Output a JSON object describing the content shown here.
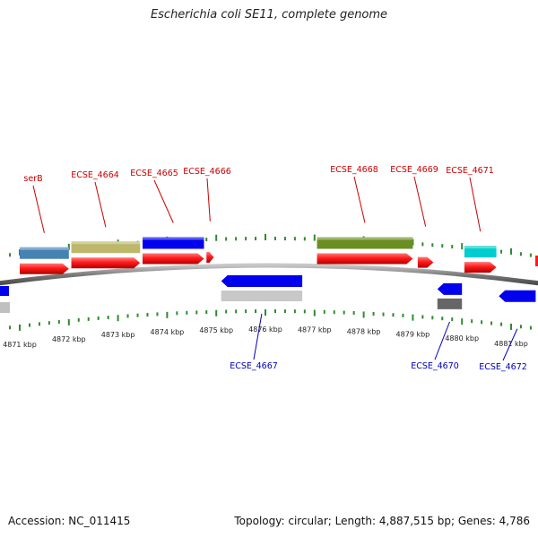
{
  "title": "Escherichia coli SE11, complete genome",
  "footer": {
    "accession": "Accession: NC_011415",
    "summary": "Topology: circular; Length: 4,887,515 bp; Genes: 4,786"
  },
  "colors": {
    "backbone": "#8a8a8a",
    "tick": "#2e8b2e",
    "forward_label": "#cc0000",
    "reverse_label": "#0000bb",
    "cds": "#ff1a1a"
  },
  "tick_labels": [
    "4871 kbp",
    "4872 kbp",
    "4873 kbp",
    "4874 kbp",
    "4875 kbp",
    "4876 kbp",
    "4877 kbp",
    "4878 kbp",
    "4879 kbp",
    "4880 kbp",
    "4881 kbp"
  ],
  "forward_labels": [
    "serB",
    "ECSE_4664",
    "ECSE_4665",
    "ECSE_4666",
    "ECSE_4668",
    "ECSE_4669",
    "ECSE_4671"
  ],
  "reverse_labels": [
    "ECSE_4667",
    "ECSE_4670",
    "ECSE_4672"
  ],
  "chart_data": {
    "type": "genome_track",
    "region_kbp": [
      4870.8,
      4881.8
    ],
    "forward_genes": [
      {
        "label": "serB",
        "start": 4871.0,
        "end": 4872.0,
        "color": "#4682b4"
      },
      {
        "label": "ECSE_4664",
        "start": 4872.05,
        "end": 4873.45,
        "color": "#bdb76b"
      },
      {
        "label": "ECSE_4665",
        "start": 4873.5,
        "end": 4874.75,
        "color": "#0000ee"
      },
      {
        "label": "ECSE_4666",
        "start": 4874.8,
        "end": 4874.95,
        "color": "#ff1a1a"
      },
      {
        "label": "ECSE_4668",
        "start": 4877.05,
        "end": 4879.0,
        "color": "#6b8e23"
      },
      {
        "label": "ECSE_4669",
        "start": 4879.1,
        "end": 4879.42,
        "color": "#ff8c00"
      },
      {
        "label": "ECSE_4671",
        "start": 4880.05,
        "end": 4880.7,
        "color": "#00cdcd"
      }
    ],
    "reverse_genes": [
      {
        "label": "ECSE_4667",
        "start": 4875.1,
        "end": 4876.75,
        "color": "#0000ee"
      },
      {
        "label": "ECSE_4670",
        "start": 4879.5,
        "end": 4880.0,
        "color": "#0000ee"
      },
      {
        "label": "ECSE_4672",
        "start": 4880.75,
        "end": 4881.5,
        "color": "#0000ee"
      }
    ]
  }
}
